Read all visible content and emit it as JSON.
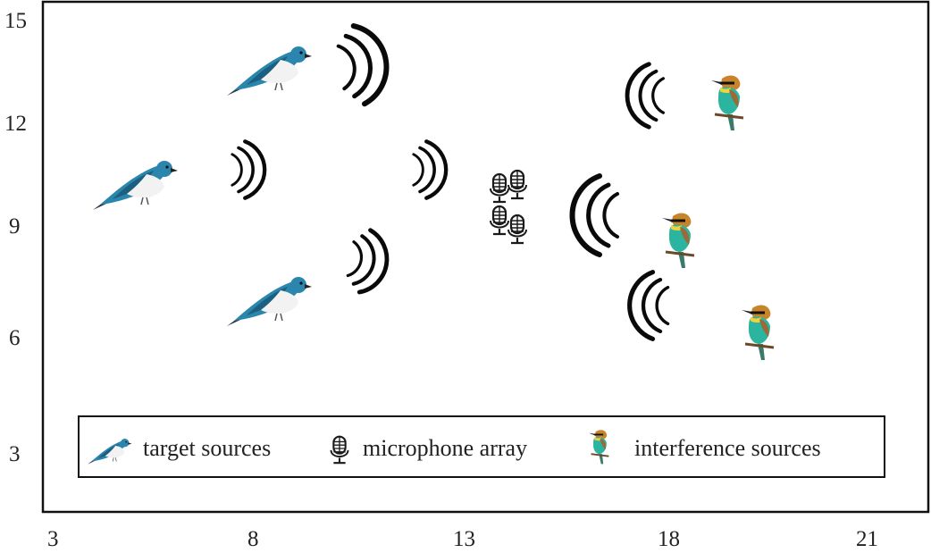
{
  "plot": {
    "x_ticks": [
      "3",
      "8",
      "13",
      "18",
      "21"
    ],
    "y_ticks": [
      "15",
      "12",
      "9",
      "6",
      "3"
    ],
    "xlim": [
      3,
      21
    ],
    "ylim": [
      3,
      15
    ]
  },
  "legend": {
    "target_label": "target sources",
    "mic_label": "microphone array",
    "interference_label": "interference sources"
  },
  "icons": {
    "target": "swallow-bird-icon",
    "microphone": "microphone-icon",
    "interference": "bee-eater-bird-icon",
    "wave": "sound-wave-icon"
  },
  "colors": {
    "target_bird": "#2a7fa6",
    "interference_bird_body": "#2bb5a0",
    "interference_bird_head": "#c8842a",
    "frame": "#111111"
  }
}
